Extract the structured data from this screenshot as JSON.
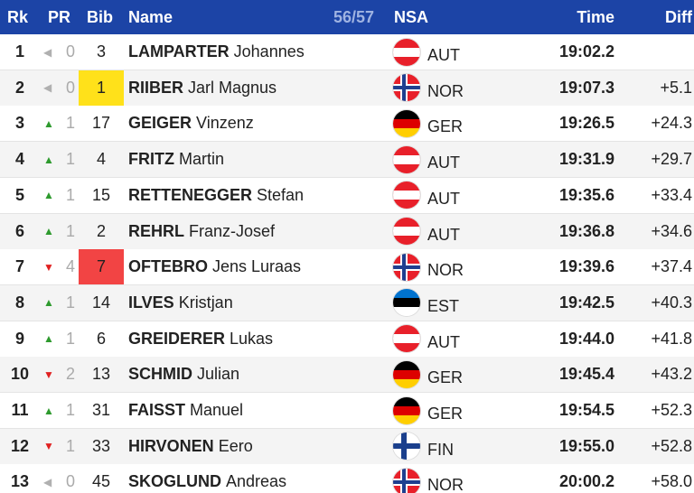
{
  "header": {
    "rk": "Rk",
    "pr": "PR",
    "bib": "Bib",
    "name": "Name",
    "count": "56/57",
    "nsa": "NSA",
    "time": "Time",
    "diff": "Diff"
  },
  "table": {
    "rows": [
      {
        "rk": 1,
        "pr_arrow": "◀",
        "pr": 0,
        "bib": 3,
        "surname": "LAMPARTER",
        "firstname": "Johannes",
        "nsa": "AUT",
        "time": "19:02.2"
      },
      {
        "rk": 2,
        "pr_arrow": "◀",
        "pr": 0,
        "bib": 1,
        "bib_color": "#ffe11a",
        "surname": "RIIBER",
        "firstname": "Jarl Magnus",
        "nsa": "NOR",
        "time": "19:07.3",
        "diff": "+5.1"
      },
      {
        "rk": 3,
        "pr_arrow": "▲",
        "pr": 1,
        "bib": 17,
        "surname": "GEIGER",
        "firstname": "Vinzenz",
        "nsa": "GER",
        "time": "19:26.5",
        "diff": "+24.3"
      },
      {
        "rk": 4,
        "pr_arrow": "▲",
        "pr": 1,
        "bib": 4,
        "surname": "FRITZ",
        "firstname": "Martin",
        "nsa": "AUT",
        "time": "19:31.9",
        "diff": "+29.7"
      },
      {
        "rk": 5,
        "pr_arrow": "▲",
        "pr": 1,
        "bib": 15,
        "surname": "RETTENEGGER",
        "firstname": "Stefan",
        "nsa": "AUT",
        "time": "19:35.6",
        "diff": "+33.4"
      },
      {
        "rk": 6,
        "pr_arrow": "▲",
        "pr": 1,
        "bib": 2,
        "surname": "REHRL",
        "firstname": "Franz-Josef",
        "nsa": "AUT",
        "time": "19:36.8",
        "diff": "+34.6"
      },
      {
        "rk": 7,
        "pr_arrow": "▼",
        "pr": 4,
        "bib": 7,
        "bib_color": "#f24444",
        "surname": "OFTEBRO",
        "firstname": "Jens Luraas",
        "nsa": "NOR",
        "time": "19:39.6",
        "diff": "+37.4"
      },
      {
        "rk": 8,
        "pr_arrow": "▲",
        "pr": 1,
        "bib": 14,
        "surname": "ILVES",
        "firstname": "Kristjan",
        "nsa": "EST",
        "time": "19:42.5",
        "diff": "+40.3"
      },
      {
        "rk": 9,
        "pr_arrow": "▲",
        "pr": 1,
        "bib": 6,
        "surname": "GREIDERER",
        "firstname": "Lukas",
        "nsa": "AUT",
        "time": "19:44.0",
        "diff": "+41.8"
      },
      {
        "rk": 10,
        "pr_arrow": "▼",
        "pr": 2,
        "bib": 13,
        "surname": "SCHMID",
        "firstname": "Julian",
        "nsa": "GER",
        "time": "19:45.4",
        "diff": "+43.2"
      },
      {
        "rk": 11,
        "pr_arrow": "▲",
        "pr": 1,
        "bib": 31,
        "surname": "FAISST",
        "firstname": "Manuel",
        "nsa": "GER",
        "time": "19:54.5",
        "diff": "+52.3"
      },
      {
        "rk": 12,
        "pr_arrow": "▼",
        "pr": 1,
        "bib": 33,
        "surname": "HIRVONEN",
        "firstname": "Eero",
        "nsa": "FIN",
        "time": "19:55.0",
        "diff": "+52.8"
      },
      {
        "rk": 13,
        "pr_arrow": "◀",
        "pr": 0,
        "bib": 45,
        "surname": "SKOGLUND",
        "firstname": "Andreas",
        "nsa": "NOR",
        "time": "20:00.2",
        "diff": "+58.0"
      }
    ]
  }
}
